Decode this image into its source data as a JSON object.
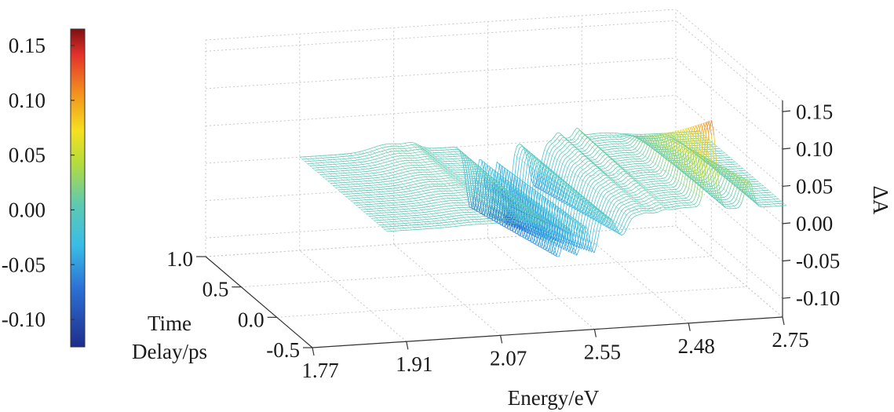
{
  "chart_data": {
    "type": "surface",
    "xlabel": "Energy/eV",
    "ylabel": "Time\nDelay/ps",
    "zlabel": "ΔA",
    "x_ticks": [
      "1.77",
      "1.91",
      "2.07",
      "2.55",
      "2.48",
      "2.75"
    ],
    "y_ticks": [
      "-0.5",
      "0.0",
      "0.5",
      "1.0"
    ],
    "z_ticks": [
      "0.15",
      "0.10",
      "0.05",
      "0.00",
      "-0.05",
      "-0.10"
    ],
    "zlim": [
      -0.125,
      0.165
    ],
    "grid": true,
    "colorbar": {
      "ticks": [
        "0.15",
        "0.10",
        "0.05",
        "0.00",
        "-0.05",
        "-0.10"
      ],
      "range": [
        -0.125,
        0.165
      ],
      "colormap": "jet"
    },
    "features": [
      {
        "x_tick_index": 0.55,
        "delta_a": -0.09
      },
      {
        "x_tick_index": 2.05,
        "delta_a": 0.012
      },
      {
        "x_tick_index": 2.85,
        "delta_a": -0.11
      },
      {
        "x_tick_index": 3.25,
        "delta_a": -0.125
      },
      {
        "x_tick_index": 3.55,
        "delta_a": -0.07
      },
      {
        "x_tick_index": 4.45,
        "delta_a": 0.16
      },
      {
        "x_tick_index": 4.85,
        "delta_a": 0.06
      }
    ],
    "colors": {
      "colormap_stops": [
        "#1f2d8a",
        "#2b6fd4",
        "#39bde6",
        "#5fcab0",
        "#b5dc3c",
        "#f5e020",
        "#f2901e",
        "#e4312a",
        "#7d0f12"
      ]
    }
  }
}
